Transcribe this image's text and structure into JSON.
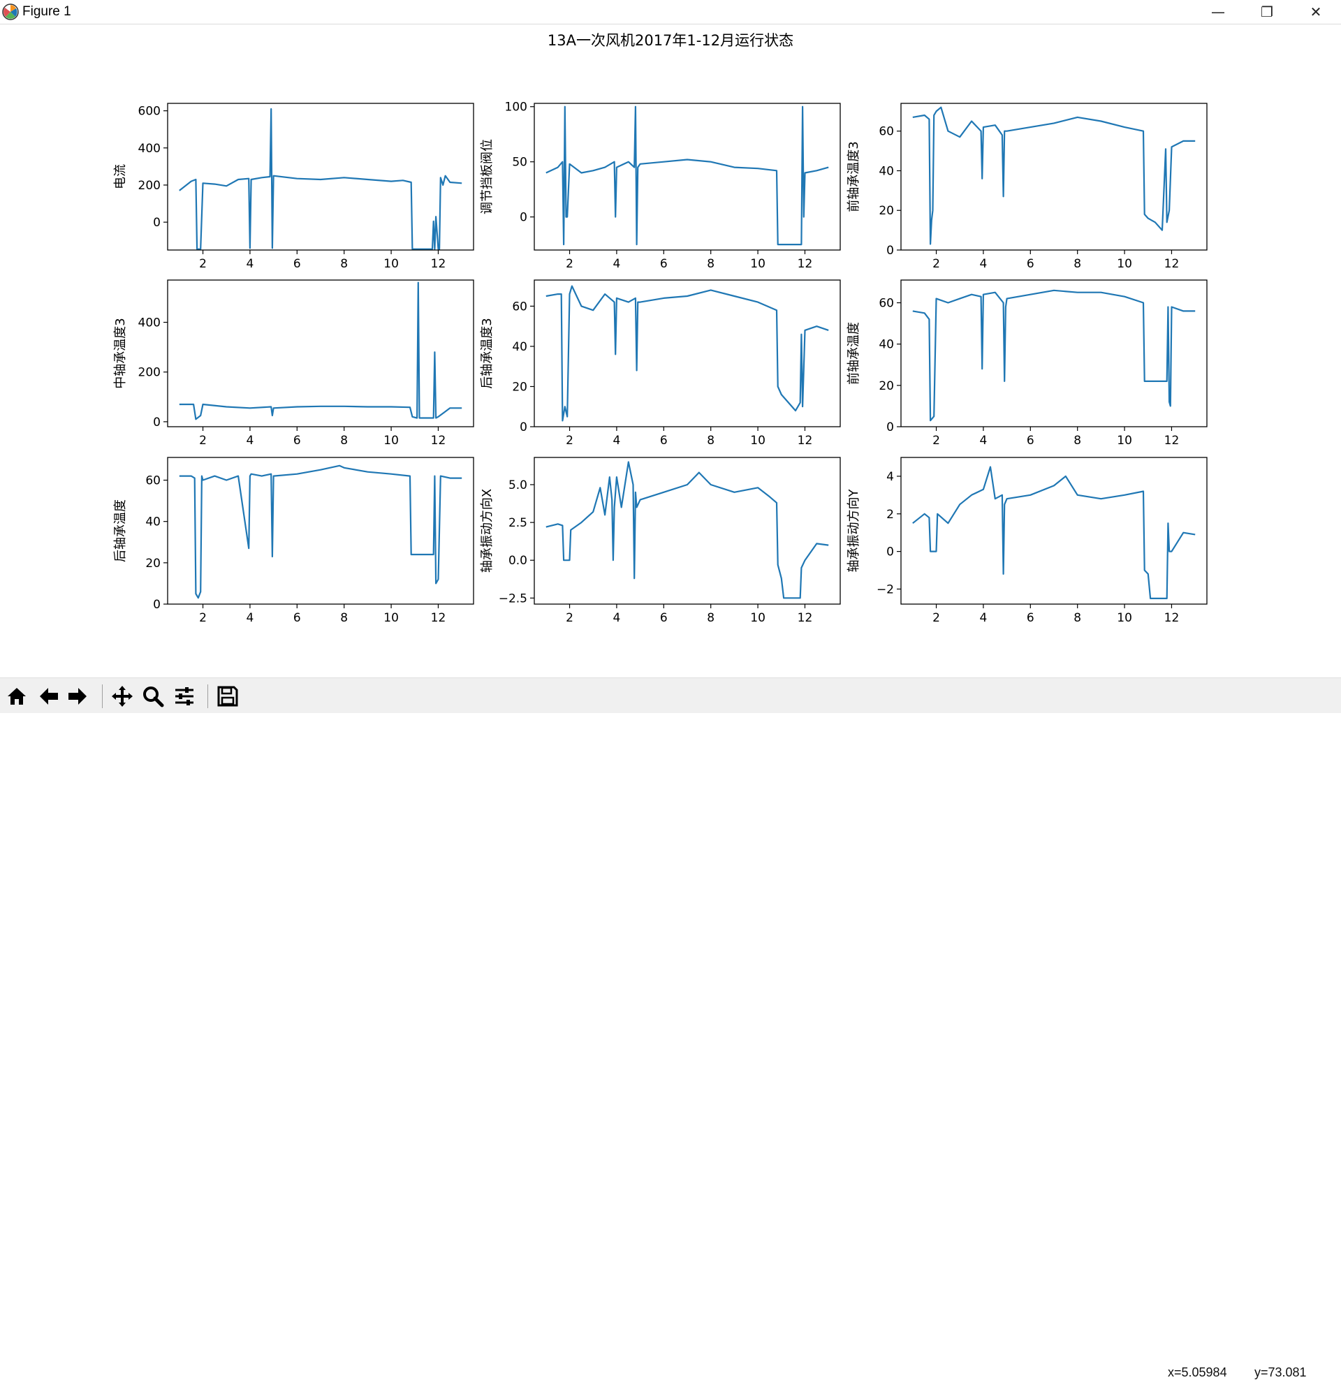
{
  "window": {
    "title": "Figure 1",
    "icon": "matplotlib-icon"
  },
  "window_controls": {
    "minimize": "—",
    "restore": "❐",
    "close": "✕"
  },
  "toolbar": {
    "buttons": [
      "home-icon",
      "back-arrow-icon",
      "forward-arrow-icon",
      "pan-icon",
      "zoom-icon",
      "configure-subplots-icon",
      "save-icon"
    ]
  },
  "status": {
    "x_readout": "x=5.05984",
    "y_readout": "y=73.081"
  },
  "colors": {
    "line": "#1f77b4",
    "axes": "#000000"
  },
  "chart_data": {
    "title": "13A一次风机2017年1-12月运行状态",
    "type": "line",
    "subplots": [
      {
        "ylabel": "电流",
        "xlim": [
          0.5,
          13.5
        ],
        "ylim": [
          -150,
          640
        ],
        "xticks": [
          2,
          4,
          6,
          8,
          10,
          12
        ],
        "yticks": [
          0,
          200,
          400,
          600
        ],
        "x": [
          1.0,
          1.5,
          1.7,
          1.75,
          1.9,
          2.0,
          2.5,
          3.0,
          3.5,
          3.95,
          4.0,
          4.05,
          4.5,
          4.85,
          4.9,
          4.95,
          5.0,
          6.0,
          7.0,
          8.0,
          9.0,
          10.0,
          10.5,
          10.85,
          10.9,
          11.5,
          11.75,
          11.8,
          11.85,
          11.9,
          12.0,
          12.05,
          12.1,
          12.2,
          12.3,
          12.5,
          13.0
        ],
        "y": [
          170,
          220,
          230,
          -145,
          -145,
          210,
          205,
          195,
          230,
          235,
          -140,
          230,
          240,
          245,
          610,
          -140,
          250,
          235,
          230,
          240,
          230,
          220,
          225,
          215,
          -145,
          -145,
          -145,
          5,
          -145,
          30,
          -145,
          -145,
          240,
          200,
          250,
          215,
          210
        ]
      },
      {
        "ylabel": "调节挡板阀位",
        "xlim": [
          0.5,
          13.5
        ],
        "ylim": [
          -30,
          103
        ],
        "xticks": [
          2,
          4,
          6,
          8,
          10,
          12
        ],
        "yticks": [
          0,
          50,
          100
        ],
        "x": [
          1.0,
          1.5,
          1.7,
          1.75,
          1.8,
          1.85,
          1.9,
          2.0,
          2.5,
          3.0,
          3.5,
          3.9,
          3.95,
          4.0,
          4.5,
          4.75,
          4.8,
          4.85,
          4.9,
          5.0,
          6.0,
          7.0,
          8.0,
          9.0,
          10.0,
          10.8,
          10.85,
          11.5,
          11.85,
          11.9,
          11.95,
          12.0,
          12.5,
          13.0
        ],
        "y": [
          40,
          45,
          50,
          -25,
          100,
          0,
          0,
          48,
          40,
          42,
          45,
          50,
          0,
          45,
          50,
          45,
          100,
          -25,
          45,
          48,
          50,
          52,
          50,
          45,
          44,
          42,
          -25,
          -25,
          -25,
          100,
          0,
          40,
          42,
          45
        ]
      },
      {
        "ylabel": "前轴承温度3",
        "xlim": [
          0.5,
          13.5
        ],
        "ylim": [
          0,
          74
        ],
        "xticks": [
          2,
          4,
          6,
          8,
          10,
          12
        ],
        "yticks": [
          0,
          20,
          40,
          60
        ],
        "x": [
          1.0,
          1.5,
          1.7,
          1.75,
          1.8,
          1.85,
          1.9,
          2.0,
          2.2,
          2.5,
          3.0,
          3.5,
          3.9,
          3.95,
          4.0,
          4.5,
          4.8,
          4.85,
          4.9,
          5.0,
          6.0,
          7.0,
          8.0,
          9.0,
          10.0,
          10.8,
          10.85,
          11.0,
          11.3,
          11.6,
          11.75,
          11.8,
          11.9,
          12.0,
          12.5,
          13.0
        ],
        "y": [
          67,
          68,
          66,
          3,
          15,
          20,
          68,
          70,
          72,
          60,
          57,
          65,
          60,
          36,
          62,
          63,
          58,
          27,
          60,
          60,
          62,
          64,
          67,
          65,
          62,
          60,
          18,
          16,
          14,
          10,
          51,
          14,
          20,
          52,
          55,
          55
        ]
      },
      {
        "ylabel": "中轴承温度3",
        "xlim": [
          0.5,
          13.5
        ],
        "ylim": [
          -20,
          570
        ],
        "xticks": [
          2,
          4,
          6,
          8,
          10,
          12
        ],
        "yticks": [
          0,
          200,
          400
        ],
        "x": [
          1.0,
          1.6,
          1.7,
          1.9,
          2.0,
          3.0,
          4.0,
          4.9,
          4.95,
          5.0,
          6.0,
          7.0,
          8.0,
          9.0,
          10.0,
          10.8,
          10.9,
          11.1,
          11.15,
          11.2,
          11.8,
          11.85,
          11.9,
          12.0,
          12.5,
          13.0
        ],
        "y": [
          70,
          70,
          10,
          25,
          70,
          60,
          55,
          60,
          25,
          55,
          60,
          62,
          62,
          60,
          60,
          58,
          20,
          15,
          560,
          15,
          15,
          280,
          15,
          20,
          55,
          55
        ]
      },
      {
        "ylabel": "后轴承温度3",
        "xlim": [
          0.5,
          13.5
        ],
        "ylim": [
          0,
          73
        ],
        "xticks": [
          2,
          4,
          6,
          8,
          10,
          12
        ],
        "yticks": [
          0,
          20,
          40,
          60
        ],
        "x": [
          1.0,
          1.5,
          1.65,
          1.7,
          1.8,
          1.9,
          2.0,
          2.1,
          2.5,
          3.0,
          3.5,
          3.9,
          3.95,
          4.0,
          4.5,
          4.8,
          4.85,
          4.9,
          5.0,
          6.0,
          7.0,
          8.0,
          9.0,
          10.0,
          10.8,
          10.85,
          11.0,
          11.3,
          11.6,
          11.8,
          11.85,
          11.9,
          12.0,
          12.5,
          13.0
        ],
        "y": [
          65,
          66,
          66,
          3,
          10,
          5,
          66,
          70,
          60,
          58,
          66,
          62,
          36,
          64,
          62,
          64,
          28,
          62,
          62,
          64,
          65,
          68,
          65,
          62,
          58,
          20,
          16,
          12,
          8,
          12,
          46,
          10,
          48,
          50,
          48
        ]
      },
      {
        "ylabel": "前轴承温度",
        "xlim": [
          0.5,
          13.5
        ],
        "ylim": [
          0,
          71
        ],
        "xticks": [
          2,
          4,
          6,
          8,
          10,
          12
        ],
        "yticks": [
          0,
          20,
          40,
          60
        ],
        "x": [
          1.0,
          1.5,
          1.7,
          1.75,
          1.9,
          2.0,
          2.5,
          3.0,
          3.5,
          3.9,
          3.95,
          4.0,
          4.5,
          4.85,
          4.9,
          4.95,
          5.0,
          6.0,
          7.0,
          8.0,
          9.0,
          10.0,
          10.8,
          10.85,
          11.8,
          11.85,
          11.9,
          11.95,
          12.0,
          12.5,
          13.0
        ],
        "y": [
          56,
          55,
          52,
          3,
          5,
          62,
          60,
          62,
          64,
          63,
          28,
          64,
          65,
          60,
          22,
          58,
          62,
          64,
          66,
          65,
          65,
          63,
          60,
          22,
          22,
          58,
          12,
          10,
          58,
          56,
          56
        ]
      },
      {
        "ylabel": "后轴承温度",
        "xlim": [
          0.5,
          13.5
        ],
        "ylim": [
          0,
          71
        ],
        "xticks": [
          2,
          4,
          6,
          8,
          10,
          12
        ],
        "yticks": [
          0,
          20,
          40,
          60
        ],
        "x": [
          1.0,
          1.5,
          1.65,
          1.7,
          1.8,
          1.9,
          1.95,
          2.0,
          2.5,
          3.0,
          3.5,
          3.95,
          4.0,
          4.05,
          4.5,
          4.9,
          4.95,
          5.0,
          6.0,
          7.0,
          7.8,
          8.0,
          9.0,
          10.0,
          10.8,
          10.85,
          11.8,
          11.85,
          11.9,
          12.0,
          12.1,
          12.5,
          13.0
        ],
        "y": [
          62,
          62,
          61,
          5,
          3,
          6,
          62,
          60,
          62,
          60,
          62,
          27,
          62,
          63,
          62,
          63,
          23,
          62,
          63,
          65,
          67,
          66,
          64,
          63,
          62,
          24,
          24,
          62,
          10,
          12,
          62,
          61,
          61
        ]
      },
      {
        "ylabel": "轴承振动方向X",
        "xlim": [
          0.5,
          13.5
        ],
        "ylim": [
          -2.9,
          6.8
        ],
        "xticks": [
          2,
          4,
          6,
          8,
          10,
          12
        ],
        "yticks": [
          -2.5,
          0.0,
          2.5,
          5.0
        ],
        "ytick_labels": [
          "−2.5",
          "0.0",
          "2.5",
          "5.0"
        ],
        "x": [
          1.0,
          1.5,
          1.7,
          1.75,
          2.0,
          2.05,
          2.5,
          3.0,
          3.3,
          3.5,
          3.7,
          3.8,
          3.85,
          3.9,
          4.0,
          4.2,
          4.5,
          4.7,
          4.75,
          4.8,
          4.85,
          5.0,
          6.0,
          7.0,
          7.5,
          8.0,
          9.0,
          10.0,
          10.5,
          10.8,
          10.85,
          11.0,
          11.1,
          11.8,
          11.85,
          12.0,
          12.5,
          13.0
        ],
        "y": [
          2.2,
          2.4,
          2.3,
          0,
          0,
          2.0,
          2.5,
          3.2,
          4.8,
          3.0,
          5.5,
          4.0,
          0,
          3.5,
          5.5,
          3.5,
          6.5,
          5.0,
          -1.2,
          4.5,
          3.5,
          4.0,
          4.5,
          5.0,
          5.8,
          5.0,
          4.5,
          4.8,
          4.2,
          3.8,
          -0.3,
          -1.2,
          -2.5,
          -2.5,
          -0.5,
          0,
          1.1,
          1.0
        ]
      },
      {
        "ylabel": "轴承振动方向Y",
        "xlim": [
          0.5,
          13.5
        ],
        "ylim": [
          -2.8,
          5.0
        ],
        "xticks": [
          2,
          4,
          6,
          8,
          10,
          12
        ],
        "yticks": [
          -2,
          0,
          2,
          4
        ],
        "ytick_labels": [
          "−2",
          "0",
          "2",
          "4"
        ],
        "x": [
          1.0,
          1.5,
          1.7,
          1.75,
          2.0,
          2.05,
          2.5,
          3.0,
          3.5,
          4.0,
          4.3,
          4.5,
          4.8,
          4.85,
          4.9,
          5.0,
          6.0,
          7.0,
          7.5,
          8.0,
          9.0,
          10.0,
          10.8,
          10.85,
          11.0,
          11.1,
          11.5,
          11.8,
          11.85,
          11.9,
          12.0,
          12.5,
          13.0
        ],
        "y": [
          1.5,
          2.0,
          1.8,
          0,
          0,
          2.0,
          1.5,
          2.5,
          3.0,
          3.3,
          4.5,
          2.8,
          3.0,
          -1.2,
          2.5,
          2.8,
          3.0,
          3.5,
          4.0,
          3.0,
          2.8,
          3.0,
          3.2,
          -1.0,
          -1.2,
          -2.5,
          -2.5,
          -2.5,
          1.5,
          0,
          0,
          1.0,
          0.9
        ]
      }
    ]
  }
}
